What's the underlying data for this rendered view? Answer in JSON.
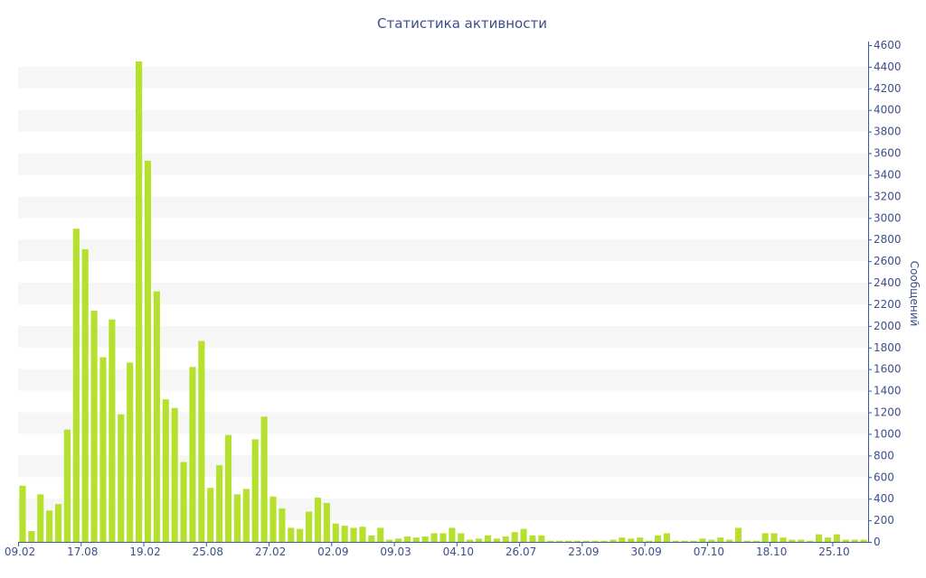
{
  "colors": {
    "bar": "#b5e02d",
    "band": "#f6f6f6",
    "axis": "#3d5a9a",
    "text": "#3d4f8a"
  },
  "chart_data": {
    "type": "bar",
    "title": "Статистика активности",
    "xlabel": "",
    "ylabel": "Сообщений",
    "ylim": [
      0,
      4600
    ],
    "y_ticks": [
      0,
      200,
      400,
      600,
      800,
      1000,
      1200,
      1400,
      1600,
      1800,
      2000,
      2200,
      2400,
      2600,
      2800,
      3000,
      3200,
      3400,
      3600,
      3800,
      4000,
      4200,
      4400,
      4600
    ],
    "y_axis_side": "right",
    "grid": "alternating horizontal bands",
    "x_tick_labels": [
      {
        "index": 0,
        "label": "09.02"
      },
      {
        "index": 7,
        "label": "17.08"
      },
      {
        "index": 14,
        "label": "19.02"
      },
      {
        "index": 21,
        "label": "25.08"
      },
      {
        "index": 28,
        "label": "27.02"
      },
      {
        "index": 35,
        "label": "02.09"
      },
      {
        "index": 42,
        "label": "09.03"
      },
      {
        "index": 49,
        "label": "04.10"
      },
      {
        "index": 56,
        "label": "26.07"
      },
      {
        "index": 63,
        "label": "23.09"
      },
      {
        "index": 70,
        "label": "30.09"
      },
      {
        "index": 77,
        "label": "07.10"
      },
      {
        "index": 84,
        "label": "18.10"
      },
      {
        "index": 91,
        "label": "25.10"
      }
    ],
    "values": [
      520,
      100,
      440,
      290,
      350,
      1040,
      2900,
      2710,
      2140,
      1710,
      2060,
      1180,
      1660,
      4450,
      3530,
      2320,
      1320,
      1240,
      740,
      1620,
      1860,
      500,
      710,
      990,
      440,
      490,
      950,
      1160,
      420,
      310,
      130,
      120,
      280,
      410,
      360,
      170,
      150,
      130,
      140,
      60,
      130,
      20,
      30,
      50,
      40,
      50,
      80,
      80,
      130,
      80,
      20,
      30,
      60,
      30,
      50,
      90,
      120,
      60,
      60,
      10,
      10,
      10,
      10,
      10,
      10,
      10,
      20,
      40,
      30,
      40,
      10,
      60,
      80,
      10,
      10,
      10,
      30,
      20,
      40,
      20,
      130,
      10,
      10,
      80,
      80,
      40,
      20,
      20,
      10,
      70,
      40,
      70,
      20,
      20,
      20
    ]
  }
}
